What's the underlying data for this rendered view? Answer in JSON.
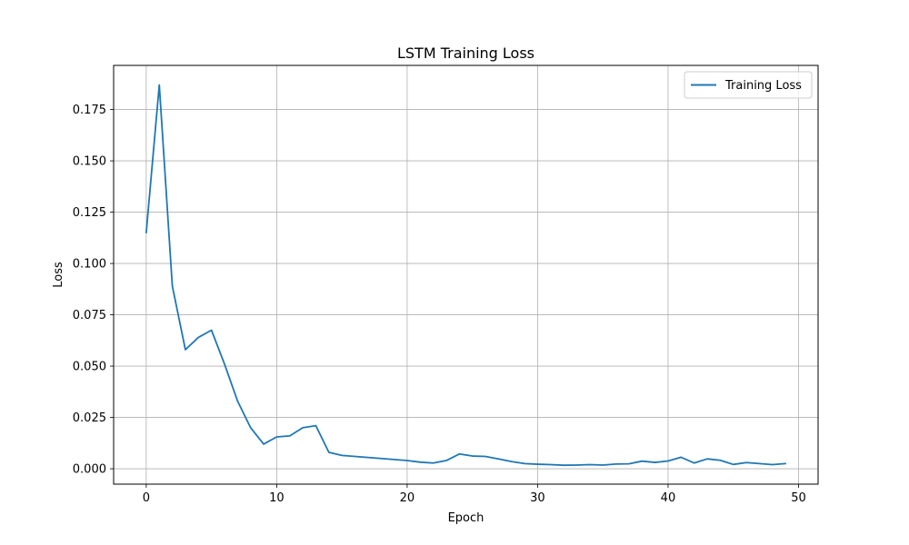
{
  "chart_data": {
    "type": "line",
    "title": "LSTM Training Loss",
    "xlabel": "Epoch",
    "ylabel": "Loss",
    "xlim": [
      -2.5,
      51.5
    ],
    "ylim": [
      -0.0075,
      0.1965
    ],
    "xticks": [
      0,
      10,
      20,
      30,
      40,
      50
    ],
    "xtick_labels": [
      "0",
      "10",
      "20",
      "30",
      "40",
      "50"
    ],
    "yticks": [
      0.0,
      0.025,
      0.05,
      0.075,
      0.1,
      0.125,
      0.15,
      0.175
    ],
    "ytick_labels": [
      "0.000",
      "0.025",
      "0.050",
      "0.075",
      "0.100",
      "0.125",
      "0.150",
      "0.175"
    ],
    "grid": true,
    "legend_position": "upper right",
    "series": [
      {
        "name": "Training Loss",
        "color": "#1f77b4",
        "x": [
          0,
          1,
          2,
          3,
          4,
          5,
          6,
          7,
          8,
          9,
          10,
          11,
          12,
          13,
          14,
          15,
          16,
          17,
          18,
          19,
          20,
          21,
          22,
          23,
          24,
          25,
          26,
          27,
          28,
          29,
          30,
          31,
          32,
          33,
          34,
          35,
          36,
          37,
          38,
          39,
          40,
          41,
          42,
          43,
          44,
          45,
          46,
          47,
          48,
          49
        ],
        "y": [
          0.115,
          0.187,
          0.089,
          0.058,
          0.064,
          0.0675,
          0.051,
          0.033,
          0.02,
          0.012,
          0.0155,
          0.016,
          0.02,
          0.021,
          0.008,
          0.0065,
          0.006,
          0.0055,
          0.005,
          0.0045,
          0.004,
          0.0032,
          0.0028,
          0.004,
          0.0072,
          0.0062,
          0.006,
          0.0048,
          0.0035,
          0.0025,
          0.0022,
          0.002,
          0.0017,
          0.0018,
          0.002,
          0.0018,
          0.0023,
          0.0024,
          0.0037,
          0.0031,
          0.0038,
          0.0056,
          0.0028,
          0.0048,
          0.0041,
          0.0021,
          0.003,
          0.0025,
          0.002,
          0.0025
        ]
      }
    ]
  }
}
